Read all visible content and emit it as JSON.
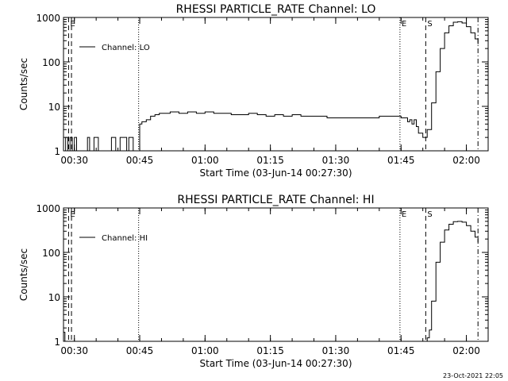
{
  "footer": {
    "timestamp": "23-Oct-2021 22:05"
  },
  "chart_data": [
    {
      "type": "line",
      "title": "RHESSI PARTICLE_RATE Channel: LO",
      "xlabel": "Start Time (03-Jun-14 00:27:30)",
      "ylabel": "Counts/sec",
      "yscale": "log",
      "ylim": [
        1,
        1000
      ],
      "y_ticks": [
        "1",
        "10",
        "100",
        "1000"
      ],
      "x_ticks": [
        "00:30",
        "00:45",
        "01:00",
        "01:15",
        "01:30",
        "01:45",
        "02:00"
      ],
      "xlim": [
        "00:27:30",
        "02:05:00"
      ],
      "legend": {
        "position": "top-left",
        "label": "Channel: LO"
      },
      "markers": [
        {
          "label": "E",
          "time": "00:28:40",
          "style": "dashed"
        },
        {
          "label": "",
          "time": "00:29:20",
          "style": "dashed"
        },
        {
          "label": "",
          "time": "00:44:45",
          "style": "dotted"
        },
        {
          "label": "E",
          "time": "01:44:45",
          "style": "dotted"
        },
        {
          "label": "S",
          "time": "01:50:40",
          "style": "dashed"
        },
        {
          "label": "",
          "time": "02:02:40",
          "style": "dashdot"
        }
      ],
      "series": [
        {
          "x": [
            "00:27:30",
            "00:28:00",
            "00:28:30",
            "00:29:00",
            "00:29:30",
            "00:30:00",
            "00:30:30",
            "00:31:00",
            "00:31:30",
            "00:32:00",
            "00:32:30",
            "00:33:00",
            "00:33:30",
            "00:34:00",
            "00:34:30",
            "00:35:00",
            "00:35:30",
            "00:36:00",
            "00:36:30",
            "00:37:00",
            "00:37:30",
            "00:38:00",
            "00:38:30",
            "00:39:00",
            "00:39:30",
            "00:40:00",
            "00:40:30",
            "00:41:00",
            "00:41:30",
            "00:42:00",
            "00:42:30",
            "00:43:00",
            "00:43:30",
            "00:44:00",
            "00:44:30",
            "00:45:00",
            "00:45:30",
            "00:46:30",
            "00:47:30",
            "00:48:30",
            "00:49:30",
            "00:50:30",
            "00:52:00",
            "00:54:00",
            "00:56:00",
            "00:58:00",
            "01:00:00",
            "01:02:00",
            "01:04:00",
            "01:06:00",
            "01:08:00",
            "01:10:00",
            "01:12:00",
            "01:14:00",
            "01:16:00",
            "01:18:00",
            "01:20:00",
            "01:22:00",
            "01:24:00",
            "01:26:00",
            "01:28:00",
            "01:30:00",
            "01:32:00",
            "01:34:00",
            "01:36:00",
            "01:38:00",
            "01:40:00",
            "01:42:00",
            "01:44:00",
            "01:45:00",
            "01:46:00",
            "01:46:30",
            "01:47:00",
            "01:47:30",
            "01:48:00",
            "01:48:30",
            "01:49:00",
            "01:49:30",
            "01:50:00",
            "01:50:30",
            "01:51:00",
            "01:52:00",
            "01:53:00",
            "01:54:00",
            "01:55:00",
            "01:56:00",
            "01:57:00",
            "01:58:00",
            "01:59:00",
            "02:00:00",
            "02:01:00",
            "02:02:00",
            "02:02:40"
          ],
          "values": [
            1,
            2,
            1,
            2,
            1,
            2,
            1,
            1,
            1,
            1,
            1,
            2,
            1,
            1,
            2,
            2,
            1,
            1,
            1,
            1,
            1,
            1,
            2,
            2,
            1,
            1,
            2,
            2,
            2,
            1,
            2,
            2,
            1,
            1,
            1,
            4,
            4.5,
            5,
            6,
            6.5,
            7,
            7,
            7.5,
            7,
            7.5,
            7,
            7.5,
            7,
            7,
            6.5,
            6.5,
            7,
            6.5,
            6,
            6.5,
            6,
            6.5,
            6,
            6,
            6,
            5.5,
            5.5,
            5.5,
            5.5,
            5.5,
            5.5,
            6,
            6,
            6,
            5.5,
            5.5,
            4.5,
            5,
            4,
            5,
            3.5,
            2.5,
            2.5,
            2,
            2,
            3,
            12,
            60,
            200,
            450,
            650,
            780,
            800,
            750,
            620,
            450,
            330,
            250
          ]
        }
      ]
    },
    {
      "type": "line",
      "title": "RHESSI PARTICLE_RATE Channel: HI",
      "xlabel": "Start Time (03-Jun-14 00:27:30)",
      "ylabel": "Counts/sec",
      "yscale": "log",
      "ylim": [
        1,
        1000
      ],
      "y_ticks": [
        "1",
        "10",
        "100",
        "1000"
      ],
      "x_ticks": [
        "00:30",
        "00:45",
        "01:00",
        "01:15",
        "01:30",
        "01:45",
        "02:00"
      ],
      "xlim": [
        "00:27:30",
        "02:05:00"
      ],
      "legend": {
        "position": "top-left",
        "label": "Channel: HI"
      },
      "markers": [
        {
          "label": "E",
          "time": "00:28:40",
          "style": "dashed"
        },
        {
          "label": "",
          "time": "00:29:20",
          "style": "dashed"
        },
        {
          "label": "",
          "time": "00:44:45",
          "style": "dotted"
        },
        {
          "label": "E",
          "time": "01:44:45",
          "style": "dotted"
        },
        {
          "label": "S",
          "time": "01:50:40",
          "style": "dashed"
        },
        {
          "label": "",
          "time": "02:02:40",
          "style": "dashdot"
        }
      ],
      "series": [
        {
          "x": [
            "00:27:30",
            "00:27:50",
            "01:51:00",
            "01:51:30",
            "01:52:00",
            "01:53:00",
            "01:54:00",
            "01:55:00",
            "01:56:00",
            "01:57:00",
            "01:58:00",
            "01:59:00",
            "02:00:00",
            "02:01:00",
            "02:02:00",
            "02:02:40"
          ],
          "values": [
            1.6,
            1,
            1.2,
            1.8,
            8,
            60,
            170,
            320,
            430,
            490,
            500,
            480,
            400,
            300,
            220,
            170
          ]
        }
      ]
    }
  ]
}
